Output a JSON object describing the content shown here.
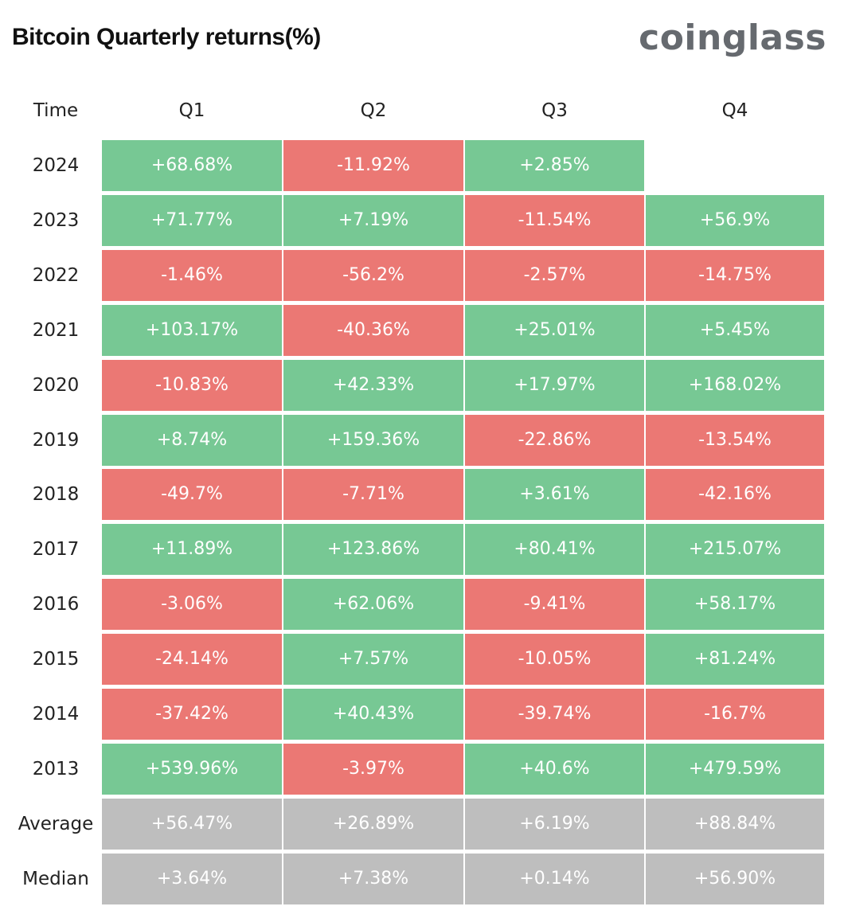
{
  "title": "Bitcoin Quarterly returns(%)",
  "logo": "coinglass",
  "colors": {
    "positive": "#77c894",
    "negative": "#eb7874",
    "stat": "#bebebe"
  },
  "chart_data": {
    "type": "table",
    "title": "Bitcoin Quarterly returns(%)",
    "columns": [
      "Time",
      "Q1",
      "Q2",
      "Q3",
      "Q4"
    ],
    "rows": [
      {
        "label": "2024",
        "kind": "year",
        "cells": [
          "+68.68%",
          "-11.92%",
          "+2.85%",
          ""
        ]
      },
      {
        "label": "2023",
        "kind": "year",
        "cells": [
          "+71.77%",
          "+7.19%",
          "-11.54%",
          "+56.9%"
        ]
      },
      {
        "label": "2022",
        "kind": "year",
        "cells": [
          "-1.46%",
          "-56.2%",
          "-2.57%",
          "-14.75%"
        ]
      },
      {
        "label": "2021",
        "kind": "year",
        "cells": [
          "+103.17%",
          "-40.36%",
          "+25.01%",
          "+5.45%"
        ]
      },
      {
        "label": "2020",
        "kind": "year",
        "cells": [
          "-10.83%",
          "+42.33%",
          "+17.97%",
          "+168.02%"
        ]
      },
      {
        "label": "2019",
        "kind": "year",
        "cells": [
          "+8.74%",
          "+159.36%",
          "-22.86%",
          "-13.54%"
        ]
      },
      {
        "label": "2018",
        "kind": "year",
        "cells": [
          "-49.7%",
          "-7.71%",
          "+3.61%",
          "-42.16%"
        ]
      },
      {
        "label": "2017",
        "kind": "year",
        "cells": [
          "+11.89%",
          "+123.86%",
          "+80.41%",
          "+215.07%"
        ]
      },
      {
        "label": "2016",
        "kind": "year",
        "cells": [
          "-3.06%",
          "+62.06%",
          "-9.41%",
          "+58.17%"
        ]
      },
      {
        "label": "2015",
        "kind": "year",
        "cells": [
          "-24.14%",
          "+7.57%",
          "-10.05%",
          "+81.24%"
        ]
      },
      {
        "label": "2014",
        "kind": "year",
        "cells": [
          "-37.42%",
          "+40.43%",
          "-39.74%",
          "-16.7%"
        ]
      },
      {
        "label": "2013",
        "kind": "year",
        "cells": [
          "+539.96%",
          "-3.97%",
          "+40.6%",
          "+479.59%"
        ]
      },
      {
        "label": "Average",
        "kind": "stat",
        "cells": [
          "+56.47%",
          "+26.89%",
          "+6.19%",
          "+88.84%"
        ]
      },
      {
        "label": "Median",
        "kind": "stat",
        "cells": [
          "+3.64%",
          "+7.38%",
          "+0.14%",
          "+56.90%"
        ]
      }
    ]
  }
}
